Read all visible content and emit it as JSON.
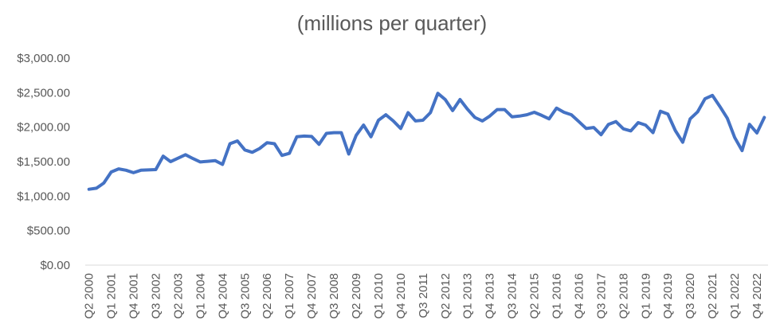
{
  "chart_data": {
    "type": "line",
    "title": "(millions per quarter)",
    "xlabel": "",
    "ylabel": "",
    "ylim": [
      0,
      3000
    ],
    "grid": false,
    "legend": "none",
    "yticks": [
      "$0.00",
      "$500.00",
      "$1,000.00",
      "$1,500.00",
      "$2,000.00",
      "$2,500.00",
      "$3,000.00"
    ],
    "x": [
      "Q2 2000",
      "Q3 2000",
      "Q4 2000",
      "Q1 2001",
      "Q2 2001",
      "Q3 2001",
      "Q4 2001",
      "Q1 2002",
      "Q2 2002",
      "Q3 2002",
      "Q4 2002",
      "Q1 2003",
      "Q2 2003",
      "Q3 2003",
      "Q4 2003",
      "Q1 2004",
      "Q2 2004",
      "Q3 2004",
      "Q4 2004",
      "Q1 2005",
      "Q2 2005",
      "Q3 2005",
      "Q4 2005",
      "Q1 2006",
      "Q2 2006",
      "Q3 2006",
      "Q4 2006",
      "Q1 2007",
      "Q2 2007",
      "Q3 2007",
      "Q4 2007",
      "Q1 2008",
      "Q2 2008",
      "Q3 2008",
      "Q4 2008",
      "Q1 2009",
      "Q2 2009",
      "Q3 2009",
      "Q4 2009",
      "Q1 2010",
      "Q2 2010",
      "Q3 2010",
      "Q4 2010",
      "Q1 2011",
      "Q2 2011",
      "Q3 2011",
      "Q4 2011",
      "Q1 2012",
      "Q2 2012",
      "Q3 2012",
      "Q4 2012",
      "Q1 2013",
      "Q2 2013",
      "Q3 2013",
      "Q4 2013",
      "Q1 2014",
      "Q2 2014",
      "Q3 2014",
      "Q4 2014",
      "Q1 2015",
      "Q2 2015",
      "Q3 2015",
      "Q4 2015",
      "Q1 2016",
      "Q2 2016",
      "Q3 2016",
      "Q4 2016",
      "Q1 2017",
      "Q2 2017",
      "Q3 2017",
      "Q4 2017",
      "Q1 2018",
      "Q2 2018",
      "Q3 2018",
      "Q4 2018",
      "Q1 2019",
      "Q2 2019",
      "Q3 2019",
      "Q4 2019",
      "Q1 2020",
      "Q2 2020",
      "Q3 2020",
      "Q4 2020",
      "Q1 2021",
      "Q2 2021",
      "Q3 2021",
      "Q4 2021",
      "Q1 2022",
      "Q2 2022",
      "Q3 2022",
      "Q4 2022",
      "Q1 2023"
    ],
    "x_tick_labels": [
      "Q2 2000",
      "Q1 2001",
      "Q4 2001",
      "Q3 2002",
      "Q2 2003",
      "Q1 2004",
      "Q4 2004",
      "Q3 2005",
      "Q2 2006",
      "Q1 2007",
      "Q4 2007",
      "Q3 2008",
      "Q2 2009",
      "Q1 2010",
      "Q4 2010",
      "Q3 2011",
      "Q2 2012",
      "Q1 2013",
      "Q4 2013",
      "Q3 2014",
      "Q2 2015",
      "Q1 2016",
      "Q4 2016",
      "Q3 2017",
      "Q2 2018",
      "Q1 2019",
      "Q4 2019",
      "Q3 2020",
      "Q2 2021",
      "Q1 2022",
      "Q4 2022"
    ],
    "series": [
      {
        "color": "#4472C4",
        "values": [
          1100,
          1115,
          1190,
          1350,
          1395,
          1375,
          1340,
          1375,
          1380,
          1385,
          1580,
          1500,
          1550,
          1600,
          1545,
          1495,
          1505,
          1515,
          1460,
          1760,
          1800,
          1670,
          1635,
          1690,
          1775,
          1760,
          1590,
          1620,
          1860,
          1870,
          1865,
          1750,
          1910,
          1920,
          1920,
          1610,
          1880,
          2030,
          1860,
          2100,
          2180,
          2090,
          1980,
          2210,
          2090,
          2100,
          2210,
          2490,
          2400,
          2240,
          2400,
          2260,
          2140,
          2090,
          2160,
          2255,
          2255,
          2150,
          2160,
          2180,
          2215,
          2170,
          2120,
          2275,
          2215,
          2180,
          2080,
          1980,
          1995,
          1890,
          2040,
          2080,
          1975,
          1945,
          2065,
          2030,
          1920,
          2230,
          2190,
          1950,
          1780,
          2120,
          2220,
          2410,
          2460,
          2300,
          2130,
          1850,
          1660,
          2040,
          1915,
          2140
        ]
      }
    ]
  }
}
